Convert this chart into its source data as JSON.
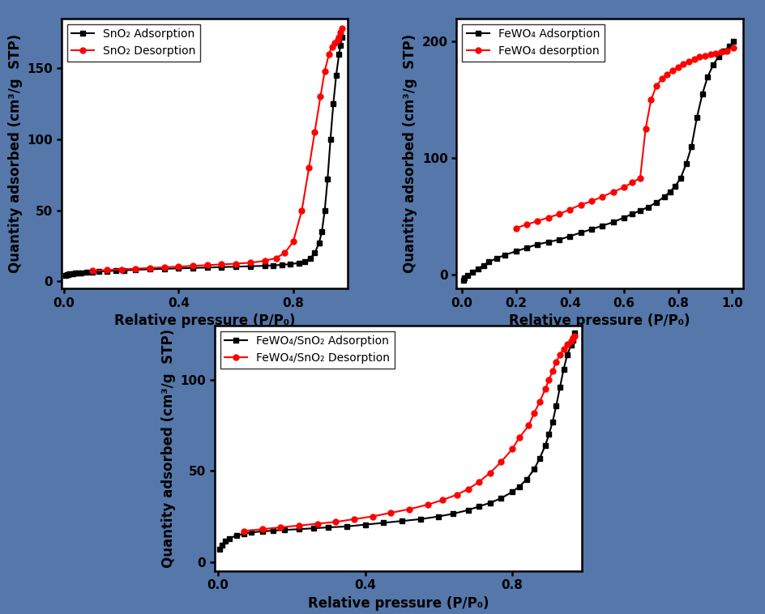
{
  "background_color": "#5577aa",
  "panel_bg": "#ffffff",
  "subplot_a": {
    "xlabel": "Relative pressure (P/P₀)",
    "ylabel": "Quantity adsorbed (cm³/g  STP)",
    "xlim": [
      -0.01,
      0.99
    ],
    "ylim": [
      -5,
      185
    ],
    "yticks": [
      0,
      50,
      100,
      150
    ],
    "xticks": [
      0.0,
      0.4,
      0.8
    ],
    "adsorption_x": [
      0.005,
      0.01,
      0.015,
      0.02,
      0.03,
      0.04,
      0.05,
      0.06,
      0.08,
      0.1,
      0.12,
      0.15,
      0.18,
      0.21,
      0.25,
      0.3,
      0.35,
      0.4,
      0.45,
      0.5,
      0.55,
      0.6,
      0.65,
      0.7,
      0.73,
      0.76,
      0.79,
      0.82,
      0.84,
      0.86,
      0.875,
      0.89,
      0.9,
      0.91,
      0.92,
      0.93,
      0.94,
      0.95,
      0.96,
      0.965,
      0.97
    ],
    "adsorption_y": [
      4.5,
      4.8,
      5.0,
      5.2,
      5.5,
      5.7,
      5.9,
      6.1,
      6.4,
      6.7,
      7.0,
      7.3,
      7.6,
      7.9,
      8.2,
      8.6,
      8.9,
      9.2,
      9.5,
      9.8,
      10.1,
      10.4,
      10.7,
      11.0,
      11.3,
      11.7,
      12.2,
      13.0,
      14.0,
      16.5,
      20.0,
      27.0,
      35.0,
      50.0,
      72.0,
      100.0,
      125.0,
      145.0,
      160.0,
      166.0,
      172.0
    ],
    "desorption_x": [
      0.1,
      0.15,
      0.2,
      0.25,
      0.3,
      0.35,
      0.4,
      0.45,
      0.5,
      0.55,
      0.6,
      0.65,
      0.7,
      0.74,
      0.77,
      0.8,
      0.83,
      0.855,
      0.875,
      0.895,
      0.91,
      0.925,
      0.935,
      0.945,
      0.955,
      0.96,
      0.965,
      0.97
    ],
    "desorption_y": [
      7.5,
      8.0,
      8.5,
      9.0,
      9.5,
      10.0,
      10.5,
      11.0,
      11.5,
      12.0,
      12.5,
      13.2,
      14.5,
      16.5,
      20.0,
      28.0,
      50.0,
      80.0,
      105.0,
      130.0,
      148.0,
      160.0,
      165.0,
      168.0,
      170.0,
      172.0,
      175.0,
      178.0
    ],
    "legend1": "SnO₂ Adsorption",
    "legend2": "SnO₂ Desorption"
  },
  "subplot_b": {
    "xlabel": "Relative pressure (P/P₀)",
    "ylabel": "Quantity adsorbed (cm³/g  STP)",
    "xlim": [
      -0.02,
      1.04
    ],
    "ylim": [
      -12,
      220
    ],
    "yticks": [
      0,
      100,
      200
    ],
    "xticks": [
      0.0,
      0.2,
      0.4,
      0.6,
      0.8,
      1.0
    ],
    "adsorption_x": [
      0.005,
      0.01,
      0.02,
      0.04,
      0.06,
      0.08,
      0.1,
      0.13,
      0.16,
      0.2,
      0.24,
      0.28,
      0.32,
      0.36,
      0.4,
      0.44,
      0.48,
      0.52,
      0.56,
      0.6,
      0.63,
      0.66,
      0.69,
      0.72,
      0.75,
      0.77,
      0.79,
      0.81,
      0.83,
      0.85,
      0.87,
      0.89,
      0.91,
      0.93,
      0.95,
      0.97,
      0.99,
      1.005
    ],
    "adsorption_y": [
      -5.0,
      -3.0,
      -1.0,
      2.0,
      5.0,
      8.0,
      11.0,
      14.0,
      17.0,
      20.0,
      23.0,
      26.0,
      28.0,
      30.0,
      33.0,
      36.0,
      39.0,
      42.0,
      45.0,
      49.0,
      52.0,
      55.0,
      58.0,
      62.0,
      67.0,
      71.0,
      76.0,
      83.0,
      95.0,
      110.0,
      135.0,
      155.0,
      170.0,
      180.0,
      187.0,
      192.0,
      196.0,
      200.0
    ],
    "desorption_x": [
      0.2,
      0.24,
      0.28,
      0.32,
      0.36,
      0.4,
      0.44,
      0.48,
      0.52,
      0.56,
      0.6,
      0.63,
      0.66,
      0.68,
      0.7,
      0.72,
      0.74,
      0.76,
      0.78,
      0.8,
      0.82,
      0.84,
      0.86,
      0.88,
      0.9,
      0.92,
      0.94,
      0.96,
      0.98,
      1.005
    ],
    "desorption_y": [
      40.0,
      43.0,
      46.0,
      49.0,
      52.0,
      56.0,
      60.0,
      63.0,
      67.0,
      71.0,
      75.0,
      79.0,
      83.0,
      125.0,
      150.0,
      162.0,
      168.0,
      172.0,
      175.0,
      178.0,
      181.0,
      183.0,
      185.0,
      187.0,
      188.0,
      189.0,
      190.0,
      191.0,
      192.0,
      195.0
    ],
    "legend1": "FeWO₄ Adsorption",
    "legend2": "FeWO₄ desorption"
  },
  "subplot_c": {
    "xlabel": "Relative pressure (P/P₀)",
    "ylabel": "Quantity adsorbed (cm³/g  STP)",
    "xlim": [
      -0.01,
      0.99
    ],
    "ylim": [
      -5,
      130
    ],
    "yticks": [
      0,
      50,
      100
    ],
    "xticks": [
      0.0,
      0.4,
      0.8
    ],
    "adsorption_x": [
      0.005,
      0.01,
      0.02,
      0.03,
      0.05,
      0.07,
      0.09,
      0.12,
      0.15,
      0.18,
      0.22,
      0.26,
      0.3,
      0.35,
      0.4,
      0.45,
      0.5,
      0.55,
      0.6,
      0.64,
      0.68,
      0.71,
      0.74,
      0.77,
      0.8,
      0.82,
      0.84,
      0.86,
      0.875,
      0.89,
      0.9,
      0.91,
      0.92,
      0.93,
      0.94,
      0.95,
      0.96,
      0.965,
      0.97
    ],
    "adsorption_y": [
      7.0,
      9.0,
      11.5,
      13.0,
      14.5,
      15.5,
      16.2,
      16.8,
      17.2,
      17.6,
      18.0,
      18.5,
      19.0,
      19.5,
      20.5,
      21.5,
      22.5,
      23.5,
      25.0,
      26.5,
      28.5,
      30.5,
      32.5,
      35.0,
      38.5,
      41.5,
      45.5,
      51.0,
      57.0,
      64.0,
      70.0,
      77.0,
      86.0,
      96.0,
      106.0,
      114.0,
      119.0,
      122.0,
      126.0
    ],
    "desorption_x": [
      0.07,
      0.12,
      0.17,
      0.22,
      0.27,
      0.32,
      0.37,
      0.42,
      0.47,
      0.52,
      0.57,
      0.61,
      0.65,
      0.68,
      0.71,
      0.74,
      0.77,
      0.8,
      0.82,
      0.845,
      0.86,
      0.875,
      0.89,
      0.9,
      0.91,
      0.92,
      0.93,
      0.94,
      0.95,
      0.96,
      0.965,
      0.97
    ],
    "desorption_y": [
      17.0,
      18.0,
      19.0,
      20.0,
      21.0,
      22.0,
      23.5,
      25.0,
      27.0,
      29.0,
      31.5,
      34.0,
      37.0,
      40.0,
      44.0,
      49.0,
      55.0,
      62.0,
      68.5,
      75.0,
      82.0,
      88.0,
      95.0,
      100.0,
      105.0,
      110.0,
      114.0,
      117.0,
      119.5,
      121.5,
      123.0,
      124.0
    ],
    "legend1": "FeWO₄/SnO₂ Adsorption",
    "legend2": "FeWO₄/SnO₂ Desorption"
  },
  "line_color_black": "#000000",
  "line_color_red": "#ff0000",
  "marker_black": "s",
  "marker_red": "o",
  "markersize": 5,
  "linewidth": 1.5,
  "axis_linewidth": 1.8,
  "tick_fontsize": 11,
  "label_fontsize": 12,
  "legend_fontsize": 10
}
